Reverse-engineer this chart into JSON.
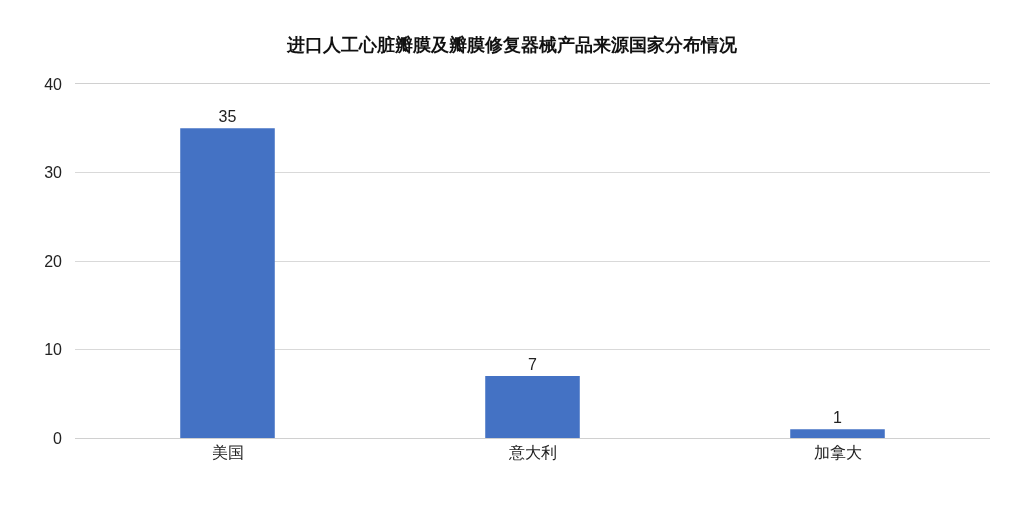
{
  "chart_data": {
    "type": "bar",
    "title": "进口人工心脏瓣膜及瓣膜修复器械产品来源国家分布情况",
    "categories": [
      "美国",
      "意大利",
      "加拿大"
    ],
    "values": [
      35,
      7,
      1
    ],
    "color": "#4472c4",
    "ylim": [
      0,
      40
    ],
    "yticks": [
      0,
      10,
      20,
      30,
      40
    ],
    "grid": "y",
    "data_labels": true
  }
}
